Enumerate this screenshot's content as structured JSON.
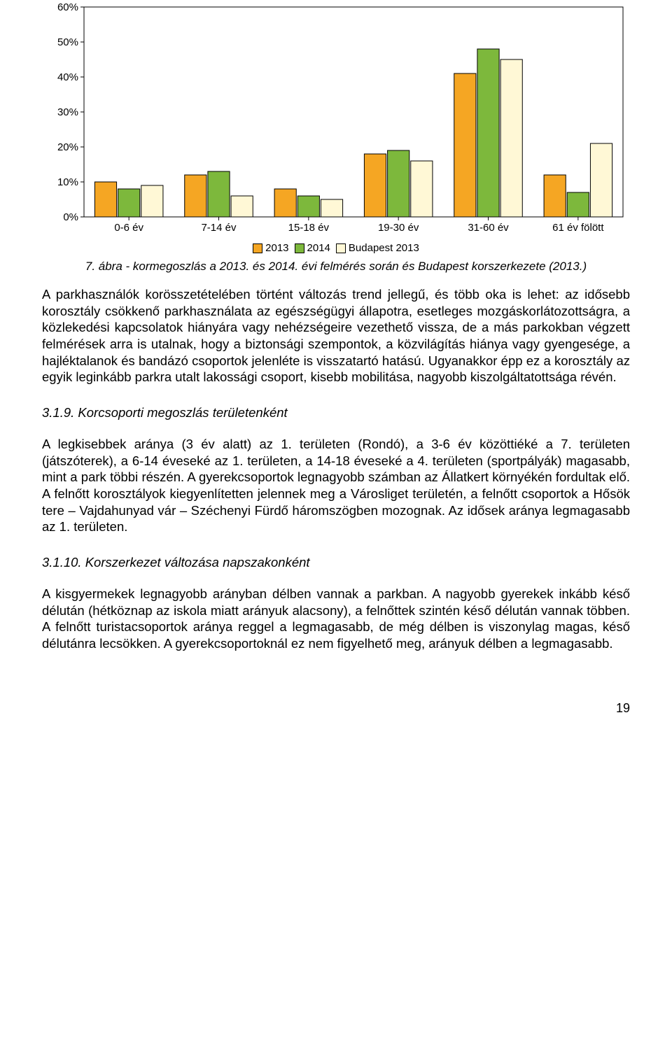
{
  "chart": {
    "type": "grouped-bar",
    "categories": [
      "0-6 év",
      "7-14 év",
      "15-18 év",
      "19-30 év",
      "31-60 év",
      "61 év fölött"
    ],
    "series": [
      {
        "label": "2013",
        "color": "#f5a623",
        "values": [
          10,
          12,
          8,
          18,
          41,
          12
        ]
      },
      {
        "label": "2014",
        "color": "#7db83c",
        "values": [
          8,
          13,
          6,
          19,
          48,
          7
        ]
      },
      {
        "label": "Budapest 2013",
        "color": "#fff8d6",
        "values": [
          9,
          6,
          5,
          16,
          45,
          21
        ]
      }
    ],
    "ylim": [
      0,
      60
    ],
    "ytick_step": 10,
    "ytick_suffix": "%",
    "axis_label_fontsize": 15,
    "legend_fontsize": 15,
    "bar_group_gap": 0.5,
    "bar_subgap": 2,
    "background_color": "#ffffff",
    "axis_color": "#000000",
    "border_around_plot": true,
    "caption": "7. ábra - kormegoszlás a 2013. és 2014. évi felmérés során és Budapest korszerkezete (2013.)"
  },
  "paragraph1": "A parkhasználók korösszetételében történt változás trend jellegű, és több oka is lehet: az idősebb korosztály csökkenő parkhasználata az egészségügyi állapotra, esetleges mozgáskorlátozottságra, a közlekedési kapcsolatok hiányára vagy nehézségeire vezethető vissza, de a más parkokban végzett felmérések arra is utalnak, hogy a biztonsági szempontok, a közvilágítás hiánya vagy gyengesége, a hajléktalanok és bandázó csoportok jelenléte is visszatartó hatású. Ugyanakkor épp ez a korosztály az egyik leginkább parkra utalt lakossági csoport, kisebb mobilitása, nagyobb kiszolgáltatottsága révén.",
  "heading_319": "3.1.9. Korcsoporti megoszlás területenként",
  "paragraph2": "A legkisebbek aránya (3 év alatt) az 1. területen (Rondó), a 3-6 év közöttiéké a 7. területen (játszóterek), a 6-14 éveseké az 1. területen, a 14-18 éveseké a 4. területen (sportpályák) magasabb, mint a park többi részén. A gyerekcsoportok legnagyobb számban az Állatkert környékén fordultak elő. A felnőtt korosztályok kiegyenlítetten jelennek meg a Városliget területén, a felnőtt csoportok a Hősök tere – Vajdahunyad vár – Széchenyi Fürdő háromszögben mozognak. Az idősek aránya legmagasabb az 1. területen.",
  "heading_3110": "3.1.10. Korszerkezet változása napszakonként",
  "paragraph3": "A kisgyermekek legnagyobb arányban délben vannak a parkban. A nagyobb gyerekek inkább késő délután (hétköznap az iskola miatt arányuk alacsony), a felnőttek szintén késő délután vannak többen. A felnőtt turistacsoportok aránya reggel a legmagasabb, de még délben is viszonylag magas, késő délutánra lecsökken. A gyerekcsoportoknál ez nem figyelhető meg, arányuk délben a legmagasabb.",
  "page_number": "19"
}
